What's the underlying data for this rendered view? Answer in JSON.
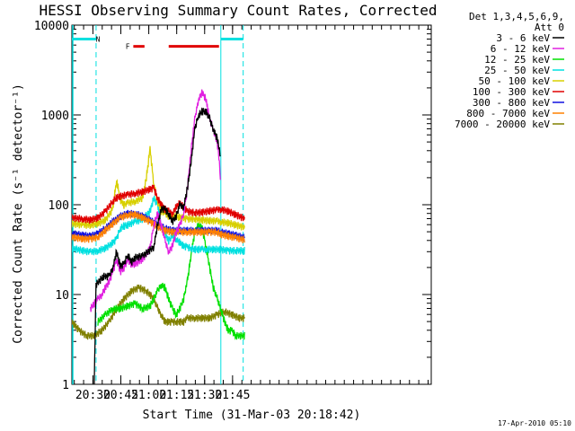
{
  "chart_data": {
    "type": "line",
    "title": "HESSI Observing Summary Count Rates, Corrected",
    "xlabel": "Start Time (31-Mar-03 20:18:42)",
    "ylabel": "Corrected Count Rate (s⁻¹ detector⁻¹)",
    "x_unit": "minutes after 20:18:42 UT",
    "xlim": [
      0,
      193
    ],
    "ylim": [
      1,
      10000
    ],
    "yscale": "log",
    "x_ticks": [
      {
        "x": 11.3,
        "label": "20:30"
      },
      {
        "x": 26.3,
        "label": "20:45"
      },
      {
        "x": 41.3,
        "label": "21:00"
      },
      {
        "x": 56.3,
        "label": "21:15"
      },
      {
        "x": 71.3,
        "label": "21:30"
      },
      {
        "x": 86.3,
        "label": "21:45"
      }
    ],
    "y_ticks": [
      {
        "y": 1,
        "label": "1"
      },
      {
        "y": 10,
        "label": "10"
      },
      {
        "y": 100,
        "label": "100"
      },
      {
        "y": 1000,
        "label": "1000"
      },
      {
        "y": 10000,
        "label": "10000"
      }
    ],
    "legend": {
      "position": "right",
      "header": [
        "Det 1,3,4,5,6,9,",
        "Att 0"
      ]
    },
    "series": [
      {
        "name": "3 - 6 keV",
        "color": "#000000",
        "x": [
          0,
          11,
          12,
          13,
          17,
          20,
          22,
          24,
          26,
          28,
          30,
          32,
          34,
          38,
          44,
          46,
          48,
          50,
          52,
          54,
          56,
          58,
          60,
          62,
          64,
          66,
          68,
          70,
          72,
          74,
          76,
          78,
          79,
          80,
          81
        ],
        "y": [
          null,
          null,
          1,
          13,
          16,
          16,
          20,
          30,
          21,
          22,
          28,
          23,
          26,
          27,
          34,
          60,
          90,
          90,
          80,
          65,
          75,
          100,
          95,
          150,
          300,
          700,
          1000,
          1100,
          1100,
          900,
          700,
          550,
          450,
          300,
          null
        ]
      },
      {
        "name": "6 - 12 keV",
        "color": "#e020e0",
        "x": [
          0,
          8,
          10,
          12,
          14,
          16,
          18,
          20,
          22,
          24,
          26,
          28,
          30,
          32,
          34,
          38,
          42,
          44,
          46,
          48,
          50,
          52,
          54,
          56,
          58,
          60,
          62,
          64,
          66,
          68,
          70,
          72,
          74,
          76,
          78,
          79,
          80,
          81
        ],
        "y": [
          null,
          null,
          7,
          8,
          9,
          10,
          12,
          14,
          18,
          25,
          18,
          20,
          24,
          22,
          22,
          25,
          33,
          60,
          80,
          60,
          40,
          30,
          35,
          50,
          60,
          80,
          150,
          400,
          900,
          1500,
          1800,
          1500,
          900,
          700,
          500,
          350,
          150,
          null
        ]
      },
      {
        "name": "12 - 25 keV",
        "color": "#00e000",
        "x": [
          0,
          10,
          14,
          18,
          22,
          26,
          30,
          34,
          38,
          42,
          44,
          46,
          48,
          50,
          52,
          54,
          56,
          58,
          60,
          62,
          64,
          66,
          68,
          70,
          72,
          74,
          76,
          78,
          80,
          82,
          84,
          86,
          88,
          93
        ],
        "y": [
          null,
          null,
          5,
          6,
          7,
          7,
          7.5,
          8,
          7,
          7.5,
          9,
          11,
          13,
          12,
          9,
          7,
          6,
          7,
          9,
          14,
          28,
          50,
          60,
          55,
          35,
          20,
          12,
          9,
          7,
          5,
          4,
          4,
          3.5,
          3.5
        ]
      },
      {
        "name": "25 - 50 keV",
        "color": "#00e0e0",
        "x": [
          0,
          6,
          10,
          14,
          18,
          22,
          24,
          26,
          28,
          30,
          34,
          38,
          42,
          44,
          46,
          48,
          50,
          52,
          54,
          56,
          58,
          60,
          62,
          64,
          66,
          68,
          70,
          72,
          76,
          80,
          84,
          88,
          93
        ],
        "y": [
          33,
          31,
          30,
          31,
          33,
          38,
          42,
          55,
          58,
          60,
          65,
          70,
          85,
          120,
          100,
          60,
          48,
          40,
          45,
          42,
          38,
          35,
          34,
          33,
          32,
          32,
          32,
          32,
          32,
          32,
          31,
          31,
          31
        ]
      },
      {
        "name": "50 - 100 keV",
        "color": "#d8d000",
        "x": [
          0,
          6,
          10,
          14,
          18,
          22,
          24,
          26,
          28,
          30,
          34,
          38,
          40,
          42,
          44,
          46,
          48,
          50,
          52,
          54,
          58,
          62,
          66,
          70,
          74,
          78,
          80,
          84,
          88,
          93
        ],
        "y": [
          62,
          60,
          60,
          62,
          68,
          90,
          190,
          115,
          100,
          105,
          110,
          120,
          200,
          420,
          170,
          110,
          85,
          80,
          75,
          75,
          73,
          70,
          70,
          68,
          67,
          66,
          65,
          63,
          60,
          56
        ]
      },
      {
        "name": "100 - 300 keV",
        "color": "#e00000",
        "x": [
          0,
          6,
          10,
          14,
          18,
          22,
          24,
          26,
          30,
          34,
          38,
          42,
          44,
          46,
          48,
          50,
          52,
          54,
          56,
          58,
          62,
          66,
          70,
          74,
          78,
          80,
          84,
          88,
          93
        ],
        "y": [
          72,
          70,
          68,
          72,
          85,
          110,
          120,
          125,
          130,
          135,
          140,
          150,
          155,
          120,
          100,
          90,
          85,
          80,
          95,
          105,
          85,
          82,
          83,
          86,
          88,
          90,
          85,
          78,
          70
        ]
      },
      {
        "name": "300 - 800 keV",
        "color": "#1010e0",
        "x": [
          0,
          6,
          10,
          14,
          18,
          22,
          26,
          30,
          34,
          38,
          42,
          46,
          50,
          54,
          58,
          62,
          66,
          70,
          74,
          78,
          80,
          84,
          88,
          93
        ],
        "y": [
          48,
          46,
          45,
          48,
          55,
          65,
          75,
          80,
          80,
          75,
          68,
          60,
          55,
          52,
          52,
          52,
          52,
          52,
          52,
          52,
          50,
          48,
          46,
          43
        ]
      },
      {
        "name": "800 - 7000 keV",
        "color": "#ff8000",
        "x": [
          0,
          6,
          10,
          14,
          18,
          22,
          26,
          30,
          34,
          38,
          42,
          46,
          50,
          54,
          58,
          62,
          66,
          70,
          74,
          78,
          80,
          84,
          88,
          93
        ],
        "y": [
          44,
          42,
          42,
          44,
          52,
          62,
          72,
          78,
          78,
          72,
          65,
          58,
          52,
          50,
          50,
          50,
          50,
          50,
          50,
          50,
          47,
          45,
          43,
          41
        ]
      },
      {
        "name": "7000 - 20000 keV",
        "color": "#808000",
        "x": [
          0,
          4,
          8,
          12,
          16,
          20,
          24,
          28,
          32,
          36,
          40,
          42,
          44,
          46,
          48,
          50,
          52,
          54,
          56,
          58,
          60,
          62,
          66,
          70,
          74,
          78,
          82,
          86,
          90,
          93
        ],
        "y": [
          5,
          4,
          3.5,
          3.5,
          4,
          5,
          7,
          9,
          11,
          12,
          11,
          10,
          9,
          7,
          6,
          5,
          5,
          5,
          5,
          5,
          5,
          5.5,
          5.5,
          5.5,
          5.5,
          6,
          6.5,
          6,
          5.5,
          5.5
        ]
      }
    ],
    "attenuator_bars": [
      {
        "x": [
          0,
          13
        ],
        "y": 7000
      },
      {
        "x": [
          80,
          92
        ],
        "y": 7000
      }
    ],
    "flare_flag_bars": [
      {
        "x": [
          33,
          39
        ],
        "y": 5800
      },
      {
        "x": [
          52,
          79
        ],
        "y": 5800
      }
    ],
    "vlines": [
      {
        "x": 13,
        "style": "dashed",
        "color": "#00e0e0"
      },
      {
        "x": 80,
        "style": "solid",
        "color": "#00e0e0"
      },
      {
        "x": 92,
        "style": "dashed",
        "color": "#00e0e0"
      }
    ],
    "annotations": [
      {
        "text": "N",
        "x": 14,
        "y": 7000,
        "color": "#00e0e0"
      },
      {
        "text": "F",
        "x": 30,
        "y": 5800,
        "color": "#e00000"
      }
    ],
    "colors": {
      "cyan": "#00e0e0",
      "red": "#e00000"
    }
  },
  "footer": {
    "timestamp": "17-Apr-2010 05:10"
  }
}
